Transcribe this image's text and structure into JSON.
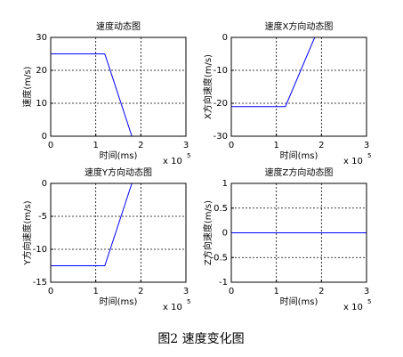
{
  "caption": "图2 速度变化图",
  "chart_data": [
    {
      "type": "line",
      "title": "速度动态图",
      "xlabel": "时间(ms)",
      "ylabel": "速度(m/s)",
      "x_scale_label": "x 10",
      "x_scale_exponent": "5",
      "x": [
        0,
        1.2,
        1.8,
        3
      ],
      "values": [
        25,
        25,
        0,
        0
      ],
      "color": "#0000ff",
      "xlim": [
        0,
        3
      ],
      "xticks": [
        0,
        1,
        2,
        3
      ],
      "ylim": [
        0,
        30
      ],
      "yticks": [
        0,
        10,
        20,
        30
      ],
      "grid": true
    },
    {
      "type": "line",
      "title": "速度X方向动态图",
      "xlabel": "时间(ms)",
      "ylabel": "X方向速度(m/s)",
      "x_scale_label": "x 10",
      "x_scale_exponent": "5",
      "x": [
        0,
        1.2,
        1.85,
        3
      ],
      "values": [
        -21,
        -21,
        0,
        0
      ],
      "color": "#0000ff",
      "xlim": [
        0,
        3
      ],
      "xticks": [
        0,
        1,
        2,
        3
      ],
      "ylim": [
        -30,
        0
      ],
      "yticks": [
        -30,
        -20,
        -10,
        0
      ],
      "grid": true
    },
    {
      "type": "line",
      "title": "速度Y方向动态图",
      "xlabel": "时间(ms)",
      "ylabel": "Y方向速度(m/s)",
      "x_scale_label": "x 10",
      "x_scale_exponent": "5",
      "x": [
        0,
        1.2,
        1.8,
        3
      ],
      "values": [
        -12.5,
        -12.5,
        0,
        0
      ],
      "color": "#0000ff",
      "xlim": [
        0,
        3
      ],
      "xticks": [
        0,
        1,
        2,
        3
      ],
      "ylim": [
        -15,
        0
      ],
      "yticks": [
        -15,
        -10,
        -5,
        0
      ],
      "grid": true
    },
    {
      "type": "line",
      "title": "速度Z方向动态图",
      "xlabel": "时间(ms)",
      "ylabel": "Z方向速度(m/s)",
      "x_scale_label": "x 10",
      "x_scale_exponent": "5",
      "x": [
        0,
        3
      ],
      "values": [
        0,
        0
      ],
      "color": "#0000ff",
      "xlim": [
        0,
        3
      ],
      "xticks": [
        0,
        1,
        2,
        3
      ],
      "ylim": [
        -1,
        1
      ],
      "yticks": [
        -1,
        -0.5,
        0,
        0.5,
        1
      ],
      "grid": true
    }
  ]
}
